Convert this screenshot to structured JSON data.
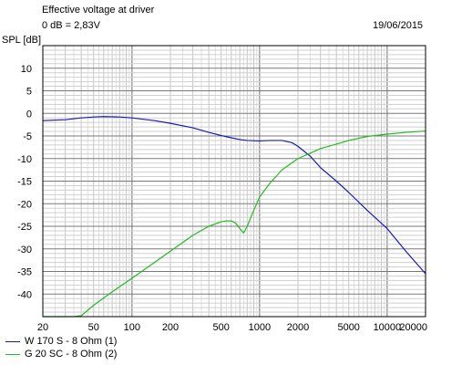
{
  "header": {
    "title": "Effective voltage at driver",
    "reference": "0 dB = 2,83V",
    "date": "19/06/2015"
  },
  "chart_data": {
    "type": "line",
    "ylabel": "SPL [dB]",
    "xscale": "log",
    "xlim": [
      20,
      20000
    ],
    "ylim": [
      -45,
      15
    ],
    "grid": true,
    "x_ticks": [
      20,
      50,
      100,
      200,
      500,
      1000,
      2000,
      5000,
      10000,
      20000
    ],
    "y_ticks": [
      10,
      5,
      0,
      -5,
      -10,
      -15,
      -20,
      -25,
      -30,
      -35,
      -40
    ],
    "legend_position": "bottom-left",
    "series": [
      {
        "name": "W 170 S - 8 Ohm (1)",
        "color": "#1a1ab4",
        "x": [
          20,
          30,
          40,
          50,
          60,
          80,
          100,
          150,
          200,
          300,
          400,
          500,
          600,
          700,
          800,
          1000,
          1200,
          1500,
          1800,
          2000,
          2500,
          3000,
          4000,
          5000,
          7000,
          10000,
          14000,
          20000
        ],
        "y": [
          -1.6,
          -1.4,
          -1.0,
          -0.8,
          -0.7,
          -0.8,
          -1.0,
          -1.6,
          -2.2,
          -3.2,
          -4.2,
          -4.9,
          -5.4,
          -5.8,
          -6.0,
          -6.1,
          -6.0,
          -6.0,
          -6.5,
          -7.3,
          -9.5,
          -12.0,
          -15.0,
          -17.5,
          -21.5,
          -25.5,
          -30.5,
          -35.5
        ]
      },
      {
        "name": "G 20 SC - 8 Ohm (2)",
        "color": "#22bb22",
        "x": [
          20,
          30,
          35,
          40,
          50,
          70,
          100,
          150,
          200,
          300,
          400,
          500,
          550,
          600,
          650,
          700,
          750,
          800,
          900,
          1000,
          1200,
          1500,
          2000,
          2500,
          3000,
          4000,
          5000,
          7000,
          10000,
          14000,
          20000
        ],
        "y": [
          -45.0,
          -45.0,
          -45.0,
          -44.8,
          -42.5,
          -39.5,
          -36.5,
          -33.0,
          -30.5,
          -27.0,
          -25.0,
          -24.0,
          -23.8,
          -23.8,
          -24.3,
          -25.5,
          -26.5,
          -25.0,
          -21.5,
          -18.5,
          -15.5,
          -12.5,
          -10.0,
          -8.8,
          -7.8,
          -6.8,
          -6.0,
          -5.1,
          -4.6,
          -4.2,
          -3.9
        ]
      }
    ]
  }
}
